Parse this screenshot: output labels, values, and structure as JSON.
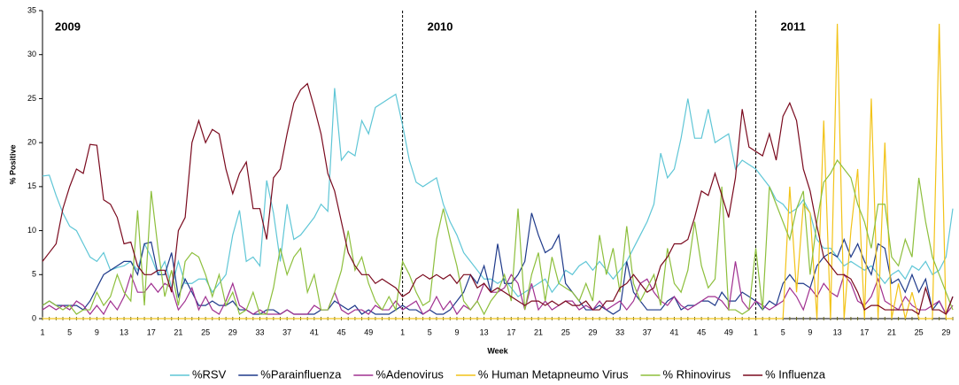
{
  "chart_data": {
    "type": "line",
    "x_label": "Week",
    "y_label": "% Positive",
    "annotations": [
      "2009",
      "2010",
      "2011"
    ],
    "categories": [
      "1",
      null,
      null,
      null,
      "5",
      null,
      null,
      null,
      "9",
      null,
      null,
      null,
      "13",
      null,
      null,
      null,
      "17",
      null,
      null,
      null,
      "21",
      null,
      null,
      null,
      "25",
      null,
      null,
      null,
      "29",
      null,
      null,
      null,
      "33",
      null,
      null,
      null,
      "37",
      null,
      null,
      null,
      "41",
      null,
      null,
      null,
      "45",
      null,
      null,
      null,
      "49",
      null,
      null,
      null,
      null,
      "1",
      null,
      null,
      null,
      "5",
      null,
      null,
      null,
      "9",
      null,
      null,
      null,
      "13",
      null,
      null,
      null,
      "17",
      null,
      null,
      null,
      "21",
      null,
      null,
      null,
      "25",
      null,
      null,
      null,
      "29",
      null,
      null,
      null,
      "33",
      null,
      null,
      null,
      "37",
      null,
      null,
      null,
      "41",
      null,
      null,
      null,
      "45",
      null,
      null,
      null,
      "49",
      null,
      null,
      null,
      "1",
      null,
      null,
      null,
      "5",
      null,
      null,
      null,
      "9",
      null,
      null,
      null,
      "13",
      null,
      null,
      null,
      "17",
      null,
      null,
      null,
      "21",
      null,
      null,
      null,
      "25",
      null,
      null,
      null,
      "29",
      null
    ],
    "ylim": [
      0,
      35
    ],
    "yticks": [
      0,
      5,
      10,
      15,
      20,
      25,
      30,
      35
    ],
    "legend": "bottom",
    "series": [
      {
        "name": "%RSV",
        "color": "#5fc6d6",
        "values": [
          16.2,
          16.3,
          14,
          12,
          10.5,
          10,
          8.5,
          7,
          6.5,
          7.5,
          5.5,
          5.8,
          6,
          6.5,
          5.5,
          8.5,
          7,
          5,
          6.5,
          3.5,
          6.5,
          4,
          4,
          4.5,
          4.5,
          3,
          4,
          5,
          9.5,
          12.3,
          6.5,
          7,
          6,
          15.7,
          12,
          6.5,
          13,
          9,
          9.5,
          10.5,
          11.5,
          13,
          12.2,
          26.2,
          18,
          19,
          18.5,
          22.5,
          21,
          24,
          24.5,
          25,
          25.5,
          22,
          18,
          15.5,
          15,
          15.5,
          16,
          13,
          11,
          9.5,
          7.5,
          6.5,
          5.5,
          4.5,
          4.5,
          4,
          4.5,
          3.5,
          2.5,
          3,
          3.5,
          4,
          4.5,
          3,
          4,
          5.5,
          5,
          6,
          6.5,
          5.5,
          6.5,
          5.5,
          4.5,
          5.5,
          6.5,
          8,
          9.5,
          11,
          13,
          18.8,
          16,
          17,
          20.5,
          25,
          20.5,
          20.5,
          23.8,
          20,
          20.5,
          21,
          17,
          18,
          17.5,
          17,
          16,
          15,
          13.5,
          13,
          12,
          12.5,
          13.5,
          12,
          9,
          8,
          8,
          7,
          6,
          6.5,
          6,
          5.5,
          6,
          5,
          4,
          5,
          5.5,
          4.5,
          6,
          5.5,
          6.5,
          5,
          5.5,
          7,
          12.5
        ]
      },
      {
        "name": "%Parainfluenza",
        "color": "#1f3a8a",
        "values": [
          1.5,
          2,
          1.5,
          1.5,
          1.5,
          1.5,
          1,
          2,
          3.5,
          5,
          5.5,
          6,
          6.5,
          6.5,
          5,
          8.5,
          8.7,
          5,
          5,
          7.5,
          2.5,
          4.5,
          3,
          1.5,
          1.5,
          2,
          1.5,
          1.5,
          2,
          1,
          1,
          0.5,
          0.5,
          1,
          1,
          0.5,
          1,
          0.5,
          0.5,
          0.5,
          0.5,
          1,
          1,
          2,
          1.5,
          1,
          1.5,
          0.5,
          1,
          0.5,
          0.5,
          0.5,
          1,
          1.5,
          1,
          1,
          0.5,
          1,
          0.5,
          0.5,
          1,
          2,
          3,
          5,
          4,
          6,
          3,
          8.5,
          4,
          4,
          5,
          6.5,
          12,
          9.5,
          7.5,
          8,
          9.5,
          4,
          3,
          2,
          1,
          1,
          1.5,
          1,
          0.5,
          1,
          6.5,
          3,
          2,
          1,
          1,
          1,
          2,
          2.5,
          1,
          1.5,
          1.5,
          2,
          2,
          1.5,
          3,
          2,
          2,
          3,
          2.5,
          2,
          1,
          2,
          1.5,
          4,
          5,
          4,
          4,
          3.5,
          6,
          7,
          7.5,
          7,
          9,
          7,
          8.5,
          6.5,
          5,
          8.5,
          8,
          4,
          4.5,
          3,
          5,
          3,
          4.5,
          1,
          2,
          0.5,
          2.5
        ]
      },
      {
        "name": "%Adenovirus",
        "color": "#a03090",
        "values": [
          1,
          1.5,
          1,
          1.5,
          1,
          2,
          1.5,
          0.5,
          1.5,
          0.5,
          2,
          1,
          2.5,
          5,
          3,
          3,
          4,
          3,
          4,
          3.5,
          1,
          2,
          3.5,
          1,
          2.5,
          1,
          0.5,
          2,
          4,
          1.5,
          1,
          0.5,
          1,
          0.5,
          0.5,
          0.5,
          1,
          0.5,
          0.5,
          0.5,
          1.5,
          1,
          1,
          3,
          1,
          0.5,
          1,
          1,
          0.5,
          1.5,
          1,
          1,
          2,
          1,
          1.5,
          2,
          0.5,
          1,
          2.5,
          1,
          2,
          0.5,
          1.5,
          1,
          2,
          4,
          3,
          3,
          3.5,
          5,
          4,
          1,
          4,
          1,
          2,
          1,
          1.5,
          2,
          2,
          1,
          1.5,
          1,
          2,
          1,
          1.5,
          2,
          1,
          2,
          4,
          4.5,
          3,
          2,
          1.5,
          2.5,
          1.5,
          1,
          1.5,
          2,
          2.5,
          2.5,
          2,
          1,
          6.5,
          2,
          1,
          2,
          1.5,
          1,
          1.5,
          2,
          3.5,
          2.5,
          1,
          3.5,
          2.5,
          4,
          3,
          2.5,
          5,
          4,
          2,
          1.5,
          2.5,
          4.5,
          2,
          1.5,
          1,
          2.5,
          1.5,
          1,
          1,
          1.5,
          2,
          0.5,
          1.5
        ]
      },
      {
        "name": "% Human Metapneumo Virus",
        "color": "#f2c318",
        "values": [
          0,
          0,
          0,
          0,
          0,
          0,
          0,
          0,
          0,
          0,
          0,
          0,
          0,
          0,
          0,
          0,
          0,
          0,
          0,
          0,
          0,
          0,
          0,
          0,
          0,
          0,
          0,
          0,
          0,
          0,
          0,
          0,
          0,
          0,
          0,
          0,
          0,
          0,
          0,
          0,
          0,
          0,
          0,
          0,
          0,
          0,
          0,
          0,
          0,
          0,
          0,
          0,
          0,
          0,
          0,
          0,
          0,
          0,
          0,
          0,
          0,
          0,
          0,
          0,
          0,
          0,
          0,
          0,
          0,
          0,
          0,
          0,
          0,
          0,
          0,
          0,
          0,
          0,
          0,
          0,
          0,
          0,
          0,
          0,
          0,
          0,
          0,
          0,
          0,
          0,
          0,
          0,
          0,
          0,
          0,
          0,
          0,
          0,
          0,
          0,
          0,
          0,
          0,
          0,
          0,
          0,
          0,
          0,
          0,
          0,
          15,
          3,
          13,
          12,
          0,
          22.5,
          0,
          33.5,
          0,
          10,
          17,
          0,
          25,
          0,
          20,
          0,
          4,
          0,
          3,
          0,
          0,
          0,
          33.5,
          0,
          0
        ]
      },
      {
        "name": "% Rhinovirus",
        "color": "#8dbf3c",
        "values": [
          1.5,
          2,
          1.5,
          1,
          1.5,
          0.5,
          1,
          1,
          3,
          1.5,
          2.5,
          5,
          3,
          2,
          12.3,
          1.5,
          14.5,
          8,
          2.5,
          5.5,
          1.5,
          6.5,
          7.5,
          7,
          5,
          2.5,
          5,
          1.5,
          3,
          0.5,
          1,
          3,
          0.5,
          0.5,
          3.5,
          8,
          5,
          7,
          8,
          3,
          5,
          1,
          1,
          3,
          5.5,
          10,
          5.5,
          7,
          4,
          2,
          1,
          2.5,
          1,
          6.5,
          5,
          3,
          1.5,
          2,
          9,
          12.5,
          9,
          6,
          2,
          1,
          2,
          0.5,
          2,
          3,
          5,
          2,
          12.5,
          1,
          5,
          7.5,
          2,
          7,
          4,
          3.5,
          3,
          2,
          4,
          2,
          9.5,
          5,
          8,
          3,
          10.5,
          4,
          2,
          3.5,
          5,
          1.5,
          8,
          4,
          3,
          5.5,
          11,
          6,
          3.5,
          4.5,
          15,
          1,
          1,
          0.5,
          1,
          8,
          1,
          15,
          13,
          11,
          9,
          12.5,
          14.5,
          5,
          11,
          15.5,
          16.5,
          18,
          17,
          16,
          13,
          11,
          8,
          13,
          13,
          7,
          6,
          9,
          7,
          16,
          11,
          7,
          5,
          3,
          1
        ]
      },
      {
        "name": "% Influenza",
        "color": "#7a0a1e",
        "values": [
          6.5,
          7.5,
          8.5,
          12.5,
          15,
          17,
          16.5,
          19.8,
          19.7,
          13.5,
          13,
          11.5,
          8.5,
          8.7,
          6,
          5,
          5,
          5.5,
          5.5,
          3,
          10,
          11.5,
          20,
          22.5,
          20,
          21.5,
          21,
          17,
          14.2,
          16.5,
          17.8,
          12.5,
          12.5,
          9,
          16,
          17,
          21,
          24.5,
          26,
          26.7,
          24,
          21,
          16.5,
          14.5,
          11,
          7.5,
          6,
          5,
          5,
          4,
          4.5,
          4,
          3.5,
          2.5,
          3,
          4.5,
          5,
          4.5,
          5,
          4.5,
          5,
          4,
          5,
          5,
          3.5,
          4,
          3,
          3.5,
          3,
          2.5,
          2,
          1.5,
          2,
          2,
          1.5,
          2,
          1.5,
          2,
          1.5,
          1.5,
          2,
          1,
          1,
          2,
          2,
          3.5,
          4,
          5,
          4,
          3,
          3.5,
          6,
          7,
          8.5,
          8.5,
          9,
          11.5,
          14.5,
          14,
          16.5,
          14,
          11.5,
          16,
          23.8,
          19.5,
          19,
          18.5,
          21,
          18,
          23,
          24.5,
          22.5,
          17,
          14.5,
          10.5,
          7,
          6,
          5,
          5,
          4.5,
          3,
          1,
          1.5,
          1.5,
          1,
          1,
          1,
          1,
          1,
          0.5,
          3.5,
          1,
          1,
          0.5,
          2.5
        ]
      }
    ]
  }
}
